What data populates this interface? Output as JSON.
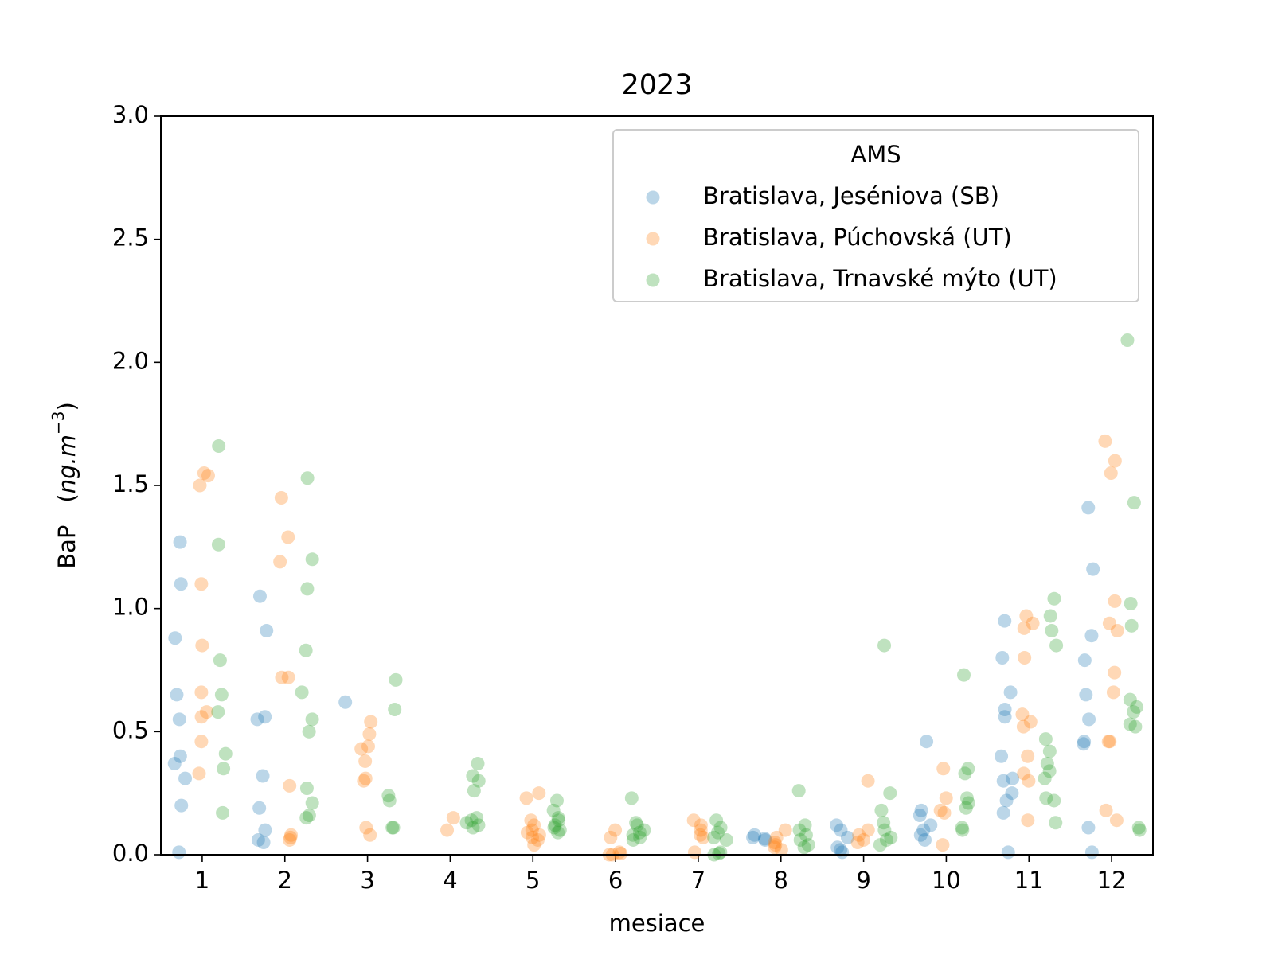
{
  "chart_data": {
    "type": "strip",
    "title": "2023",
    "xlabel": "mesiace",
    "ylabel": {
      "text": "BaP",
      "unit": "ng.m",
      "unit_exp": "−3"
    },
    "categories": [
      "1",
      "2",
      "3",
      "4",
      "5",
      "6",
      "7",
      "8",
      "9",
      "10",
      "11",
      "12"
    ],
    "ylim": [
      0,
      3
    ],
    "yticks": [
      {
        "value": 0,
        "label": "0.0"
      },
      {
        "value": 0.5,
        "label": "0.5"
      },
      {
        "value": 1,
        "label": "1.0"
      },
      {
        "value": 1.5,
        "label": "1.5"
      },
      {
        "value": 2,
        "label": "2.0"
      },
      {
        "value": 2.5,
        "label": "2.5"
      },
      {
        "value": 3,
        "label": "3.0"
      }
    ],
    "legend_title": "AMS",
    "legend_position": "upper right",
    "marker_alpha": 0.3,
    "series": [
      {
        "name": "Bratislava, Jeséniova (SB)",
        "color": "#1f77b4",
        "values": [
          [
            1.27,
            1.1,
            0.88,
            0.65,
            0.55,
            0.4,
            0.37,
            0.31,
            0.2,
            0.01
          ],
          [
            1.05,
            0.91,
            0.56,
            0.55,
            0.32,
            0.19,
            0.1,
            0.06,
            0.05
          ],
          [
            0.62
          ],
          [],
          [],
          [],
          [],
          [
            0.08,
            0.07,
            0.065,
            0.06
          ],
          [
            0.12,
            0.1,
            0.07,
            0.03,
            0.02,
            0.01
          ],
          [
            0.46,
            0.18,
            0.16,
            0.12,
            0.1,
            0.08,
            0.06
          ],
          [
            0.95,
            0.8,
            0.66,
            0.59,
            0.56,
            0.4,
            0.31,
            0.3,
            0.25,
            0.22,
            0.17,
            0.01
          ],
          [
            1.41,
            1.16,
            0.89,
            0.79,
            0.65,
            0.55,
            0.46,
            0.45,
            0.11,
            0.01
          ]
        ]
      },
      {
        "name": "Bratislava, Púchovská (UT)",
        "color": "#ff7f0e",
        "values": [
          [
            1.55,
            1.54,
            1.5,
            1.1,
            0.85,
            0.66,
            0.58,
            0.56,
            0.46,
            0.33
          ],
          [
            1.45,
            1.29,
            1.19,
            0.72,
            0.72,
            0.28,
            0.08,
            0.07,
            0.06
          ],
          [
            0.54,
            0.49,
            0.44,
            0.43,
            0.38,
            0.31,
            0.3,
            0.11,
            0.08
          ],
          [
            0.15,
            0.1
          ],
          [
            0.25,
            0.23,
            0.14,
            0.12,
            0.1,
            0.09,
            0.08,
            0.07,
            0.06,
            0.04
          ],
          [
            0.1,
            0.07,
            0.01,
            0.005,
            0,
            0
          ],
          [
            0.14,
            0.12,
            0.1,
            0.08,
            0.07,
            0.01
          ],
          [
            0.1,
            0.07,
            0.05,
            0.04,
            0.03,
            0.02
          ],
          [
            0.3,
            0.1,
            0.08,
            0.06,
            0.05
          ],
          [
            0.35,
            0.23,
            0.18,
            0.17,
            0.04
          ],
          [
            0.97,
            0.94,
            0.92,
            0.8,
            0.57,
            0.54,
            0.52,
            0.4,
            0.33,
            0.3,
            0.14
          ],
          [
            1.68,
            1.6,
            1.55,
            1.03,
            0.94,
            0.91,
            0.74,
            0.66,
            0.46,
            0.46,
            0.18,
            0.14
          ]
        ]
      },
      {
        "name": "Bratislava, Trnavské mýto (UT)",
        "color": "#2ca02c",
        "values": [
          [
            1.66,
            1.26,
            0.79,
            0.65,
            0.58,
            0.41,
            0.35,
            0.17
          ],
          [
            1.53,
            1.2,
            1.08,
            0.83,
            0.66,
            0.55,
            0.5,
            0.27,
            0.21,
            0.16,
            0.15
          ],
          [
            0.71,
            0.59,
            0.24,
            0.22,
            0.11,
            0.11
          ],
          [
            0.37,
            0.32,
            0.3,
            0.26,
            0.15,
            0.14,
            0.13,
            0.12,
            0.11
          ],
          [
            0.22,
            0.18,
            0.15,
            0.14,
            0.12,
            0.11,
            0.1,
            0.09
          ],
          [
            0.23,
            0.13,
            0.12,
            0.1,
            0.09,
            0.08,
            0.07,
            0.06
          ],
          [
            0.14,
            0.11,
            0.09,
            0.07,
            0.06,
            0.01,
            0,
            0.005
          ],
          [
            0.26,
            0.12,
            0.1,
            0.08,
            0.06,
            0.04,
            0.03
          ],
          [
            0.85,
            0.25,
            0.18,
            0.13,
            0.1,
            0.07,
            0.06,
            0.04
          ],
          [
            0.73,
            0.35,
            0.33,
            0.23,
            0.21,
            0.19,
            0.11,
            0.1
          ],
          [
            1.04,
            0.97,
            0.91,
            0.85,
            0.47,
            0.42,
            0.37,
            0.34,
            0.31,
            0.23,
            0.22,
            0.13
          ],
          [
            2.09,
            1.43,
            1.02,
            0.93,
            0.63,
            0.6,
            0.58,
            0.53,
            0.52,
            0.11,
            0.1
          ]
        ]
      }
    ]
  }
}
